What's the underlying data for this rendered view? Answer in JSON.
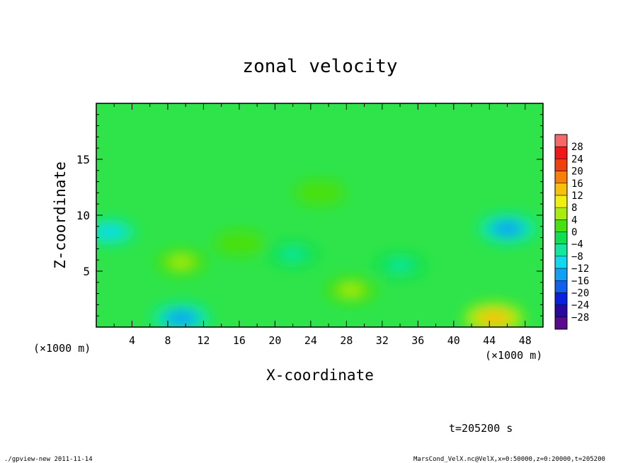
{
  "chart_data": {
    "type": "heatmap",
    "title": "zonal velocity",
    "xlabel": "X-coordinate",
    "ylabel": "Z-coordinate",
    "x_unit": "(×1000 m)",
    "x_unit_right": "(×1000 m)",
    "xlim": [
      0,
      50
    ],
    "ylim": [
      0,
      20
    ],
    "x_ticks": [
      {
        "value": 4,
        "label": "4"
      },
      {
        "value": 8,
        "label": "8"
      },
      {
        "value": 12,
        "label": "12"
      },
      {
        "value": 16,
        "label": "16"
      },
      {
        "value": 20,
        "label": "20"
      },
      {
        "value": 24,
        "label": "24"
      },
      {
        "value": 28,
        "label": "28"
      },
      {
        "value": 32,
        "label": "32"
      },
      {
        "value": 36,
        "label": "36"
      },
      {
        "value": 40,
        "label": "40"
      },
      {
        "value": 44,
        "label": "44"
      },
      {
        "value": 48,
        "label": "48"
      }
    ],
    "y_ticks": [
      {
        "value": 5,
        "label": "5"
      },
      {
        "value": 10,
        "label": "10"
      },
      {
        "value": 15,
        "label": "15"
      }
    ],
    "colorbar": {
      "levels": [
        -32,
        -28,
        -24,
        -20,
        -16,
        -12,
        -8,
        -4,
        0,
        4,
        8,
        12,
        16,
        20,
        24,
        28,
        32
      ],
      "labels": [
        "28",
        "24",
        "20",
        "16",
        "12",
        "8",
        "4",
        "0",
        "−4",
        "−8",
        "−12",
        "−16",
        "−20",
        "−24",
        "−28"
      ],
      "colors": [
        "#5a0a8c",
        "#2a08a0",
        "#0a20e0",
        "#1060f0",
        "#10a0f5",
        "#10d8f0",
        "#10e8a0",
        "#10e050",
        "#48e010",
        "#a8ec10",
        "#f0f010",
        "#f8c008",
        "#f88008",
        "#f04010",
        "#f01818",
        "#f86868"
      ]
    },
    "features": [
      {
        "x": 9.5,
        "z": 0.8,
        "value": -14
      },
      {
        "x": 46,
        "z": 8.8,
        "value": -13
      },
      {
        "x": 44.5,
        "z": 0.8,
        "value": 13
      },
      {
        "x": 1.5,
        "z": 8.5,
        "value": -9
      },
      {
        "x": 9.5,
        "z": 5.8,
        "value": 4
      },
      {
        "x": 28.5,
        "z": 3.3,
        "value": 5
      },
      {
        "x": 22,
        "z": 6.5,
        "value": -5
      },
      {
        "x": 34,
        "z": 5.5,
        "value": -5
      },
      {
        "x": 16,
        "z": 7.5,
        "value": 3
      },
      {
        "x": 25,
        "z": 12,
        "value": 2
      }
    ],
    "background_value": 0,
    "time_label": "t=205200 s",
    "footer_left": "./gpview-new   2011-11-14",
    "footer_right": "MarsCond_VelX.nc@VelX,x=0:50000,z=0:20000,t=205200"
  }
}
